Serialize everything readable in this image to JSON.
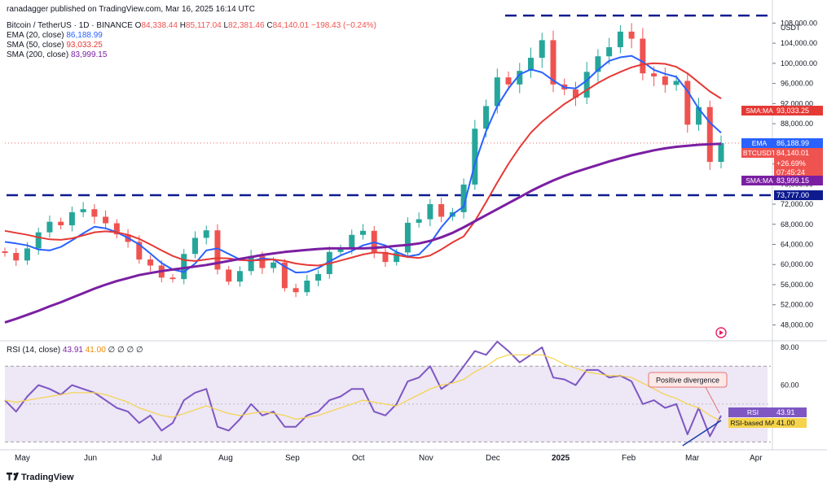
{
  "header": {
    "published": "ranadagger published on TradingView.com, Mar 16, 2025 16:14 UTC",
    "symbol": "Bitcoin / TetherUS · 1D · BINANCE",
    "ohlc": {
      "o_label": "O",
      "o": "84,338.44",
      "h_label": "H",
      "h": "85,117.04",
      "l_label": "L",
      "l": "82,381.46",
      "c_label": "C",
      "c": "84,140.01",
      "change": "−198.43 (−0.24%)"
    },
    "ema20": {
      "label": "EMA (20, close)",
      "value": "86,188.99"
    },
    "sma50": {
      "label": "SMA (50, close)",
      "value": "93,033.25"
    },
    "sma200": {
      "label": "SMA (200, close)",
      "value": "83,999.15"
    },
    "rsi": {
      "label": "RSI (14, close)",
      "value": "43.91",
      "ma_value": "41.00",
      "extra": "∅ ∅ ∅ ∅"
    }
  },
  "currency": "USDT",
  "footer": {
    "brand": "TradingView"
  },
  "colors": {
    "up": "#26a69a",
    "down": "#ef5350",
    "ema": "#2962ff",
    "sma50": "#e53935",
    "sma200": "#7b1fa2",
    "rsi": "#7e57c2",
    "rsi_ma": "#f5d34a",
    "rsi_band": "#ede7f6",
    "level_line": "#0d1b8f",
    "divergence": "#1e3da8",
    "callout_border": "#e57373",
    "callout_fill": "#fce8e6"
  },
  "chart_data": [
    {
      "type": "candlestick",
      "title": "Bitcoin / TetherUS · 1D · BINANCE",
      "x_ticks": [
        "May",
        "Jun",
        "Jul",
        "Aug",
        "Sep",
        "Oct",
        "Nov",
        "Dec",
        "2025",
        "Feb",
        "Mar",
        "Apr"
      ],
      "y_ticks": [
        "108,000.00",
        "104,000.00",
        "100,000.00",
        "96,000.00",
        "92,000.00",
        "88,000.00",
        "84,000.00",
        "80,000.00",
        "76,000.00",
        "72,000.00",
        "68,000.00",
        "64,000.00",
        "60,000.00",
        "56,000.00",
        "52,000.00",
        "48,000.00"
      ],
      "ylim": [
        45000,
        110000
      ],
      "series": [
        {
          "name": "EMA",
          "values": [
            64500,
            64200,
            63800,
            63000,
            62800,
            63500,
            64800,
            66200,
            67500,
            67200,
            66400,
            65300,
            64000,
            62200,
            60300,
            59000,
            58500,
            60200,
            62800,
            63200,
            62100,
            61000,
            60700,
            61200,
            61000,
            59600,
            58400,
            58500,
            59300,
            60600,
            61800,
            62700,
            63800,
            64400,
            63800,
            62500,
            61600,
            62000,
            64200,
            67400,
            70000,
            71500,
            80000,
            86500,
            91500,
            95000,
            97800,
            98800,
            98200,
            96600,
            95200,
            95000,
            96600,
            98700,
            100500,
            101200,
            101500,
            100300,
            98700,
            97900,
            97300,
            94500,
            91000,
            88200,
            86200
          ]
        },
        {
          "name": "SMA",
          "values": [
            66700,
            66300,
            65900,
            65400,
            65000,
            64900,
            65200,
            65800,
            66400,
            66600,
            66400,
            65900,
            65100,
            64000,
            62800,
            61700,
            60900,
            60700,
            61000,
            61300,
            61200,
            60900,
            60800,
            60900,
            61000,
            60700,
            60200,
            59900,
            59800,
            60200,
            60800,
            61400,
            62000,
            62400,
            62300,
            61900,
            61500,
            61300,
            61800,
            63000,
            64400,
            65600,
            68600,
            72400,
            76300,
            80000,
            83300,
            86200,
            88400,
            90200,
            91900,
            93300,
            94700,
            96100,
            97300,
            98300,
            99200,
            99800,
            100000,
            99900,
            99300,
            98000,
            96200,
            94400,
            93000
          ]
        },
        {
          "name": "SMA",
          "values": [
            48500,
            49200,
            50000,
            50800,
            51700,
            52500,
            53400,
            54300,
            55200,
            56000,
            56700,
            57300,
            57900,
            58300,
            58700,
            59000,
            59300,
            59600,
            59900,
            60300,
            60700,
            61100,
            61500,
            61900,
            62200,
            62500,
            62700,
            62900,
            63100,
            63200,
            63200,
            63200,
            63200,
            63300,
            63500,
            63700,
            63900,
            64200,
            64700,
            65400,
            66300,
            67400,
            68600,
            69800,
            71000,
            72200,
            73400,
            74600,
            75700,
            76700,
            77600,
            78400,
            79100,
            79800,
            80500,
            81100,
            81700,
            82200,
            82700,
            83100,
            83400,
            83600,
            83800,
            83900,
            84000
          ]
        }
      ],
      "close": [
        62300,
        60800,
        63200,
        66400,
        68500,
        67800,
        70400,
        71000,
        69500,
        68200,
        66000,
        64500,
        61000,
        59800,
        57400,
        57100,
        62100,
        65300,
        66800,
        59000,
        56600,
        58700,
        61700,
        59300,
        60400,
        55300,
        54500,
        56800,
        58100,
        62500,
        63200,
        65900,
        66700,
        62500,
        60500,
        62400,
        68300,
        69000,
        72000,
        69500,
        70400,
        75900,
        87000,
        91500,
        97200,
        95800,
        98500,
        101100,
        104600,
        95800,
        94800,
        93200,
        98300,
        101400,
        103200,
        106300,
        104900,
        98000,
        97400,
        95700,
        96500,
        87800,
        91300,
        80400,
        84140
      ],
      "levels": [
        {
          "name": "resistance",
          "value": 109500
        },
        {
          "name": "support",
          "value": 73777,
          "label": "73,777.00"
        }
      ],
      "last_values": [
        {
          "name": "SMA:MA",
          "value": "93,033.25"
        },
        {
          "name": "EMA",
          "value": "86,188.99"
        },
        {
          "name": "BTCUSDT",
          "value": "84,140.01",
          "change": "+26.69%",
          "countdown": "07:45:24"
        },
        {
          "name": "SMA:MA",
          "value": "83,999.15"
        }
      ]
    },
    {
      "type": "line",
      "title": "RSI (14, close)",
      "y_ticks": [
        "80.00",
        "60.00"
      ],
      "ylim": [
        28,
        83
      ],
      "bands": {
        "upper": 70,
        "lower": 30
      },
      "series": [
        {
          "name": "RSI",
          "values": [
            52,
            46,
            54,
            60,
            58,
            55,
            60,
            58,
            56,
            52,
            48,
            46,
            40,
            44,
            36,
            40,
            52,
            56,
            58,
            38,
            36,
            42,
            50,
            44,
            46,
            38,
            38,
            44,
            46,
            52,
            54,
            58,
            58,
            46,
            44,
            50,
            62,
            64,
            70,
            58,
            62,
            70,
            78,
            76,
            83,
            78,
            72,
            76,
            80,
            64,
            63,
            60,
            68,
            68,
            64,
            65,
            62,
            50,
            52,
            48,
            50,
            34,
            48,
            33,
            43.91
          ]
        },
        {
          "name": "RSI-based MA",
          "values": [
            52,
            51,
            52,
            53,
            54,
            55,
            56,
            56,
            56,
            55,
            53,
            51,
            48,
            46,
            44,
            43,
            45,
            47,
            49,
            47,
            45,
            44,
            45,
            46,
            45,
            44,
            42,
            43,
            44,
            46,
            48,
            50,
            52,
            51,
            50,
            49,
            52,
            55,
            58,
            60,
            61,
            63,
            67,
            70,
            74,
            76,
            76,
            76,
            76,
            74,
            71,
            69,
            67,
            66,
            65,
            65,
            64,
            61,
            58,
            55,
            53,
            50,
            48,
            44,
            41.0
          ]
        }
      ],
      "last_values": [
        {
          "name": "RSI",
          "value": "43.91"
        },
        {
          "name": "RSI-based MA",
          "value": "41.00"
        }
      ],
      "annotations": [
        {
          "text": "Positive divergence"
        }
      ]
    }
  ]
}
